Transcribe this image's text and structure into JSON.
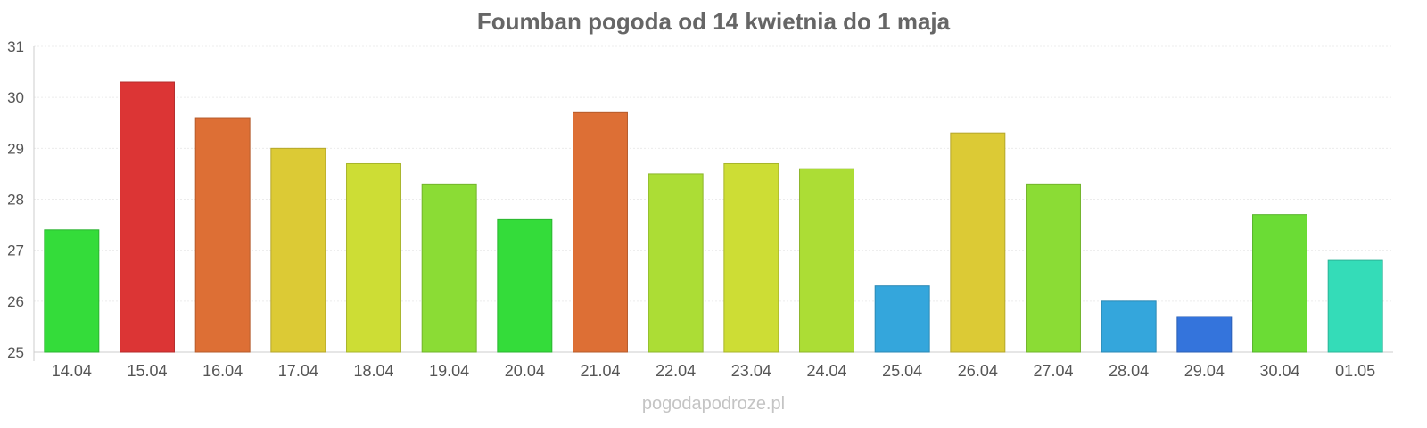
{
  "chart_data": {
    "type": "bar",
    "title": "Foumban pogoda od 14 kwietnia do 1 maja",
    "xlabel": "",
    "ylabel": "",
    "ylim": [
      25,
      31
    ],
    "yticks": [
      25,
      26,
      27,
      28,
      29,
      30,
      31
    ],
    "categories": [
      "14.04",
      "15.04",
      "16.04",
      "17.04",
      "18.04",
      "19.04",
      "20.04",
      "21.04",
      "22.04",
      "23.04",
      "24.04",
      "25.04",
      "26.04",
      "27.04",
      "28.04",
      "29.04",
      "30.04",
      "01.05"
    ],
    "values": [
      27.4,
      30.3,
      29.6,
      29.0,
      28.7,
      28.3,
      27.6,
      29.7,
      28.5,
      28.7,
      28.6,
      26.3,
      29.3,
      28.3,
      26.0,
      25.7,
      27.7,
      26.8
    ],
    "colors": [
      "#34dc3a",
      "#dc3535",
      "#dd6f35",
      "#dcca35",
      "#cddd35",
      "#8bdc35",
      "#34dc3a",
      "#dd6f35",
      "#acdd35",
      "#cddd35",
      "#acdd35",
      "#34a6dc",
      "#dcca35",
      "#8bdc35",
      "#34a6dc",
      "#3474dc",
      "#6bdc35",
      "#34dcb8"
    ],
    "grid": true,
    "legend": "none"
  },
  "watermark": "pogodapodroze.pl"
}
